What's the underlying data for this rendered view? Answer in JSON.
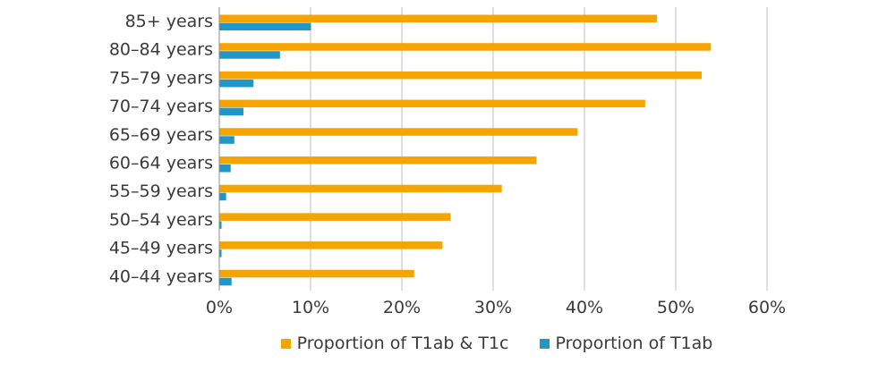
{
  "colors": {
    "orange": "#F5A400",
    "blue": "#2196C9",
    "grid": "#bfbfbf"
  },
  "chart_data": {
    "type": "bar",
    "orientation": "horizontal",
    "categories": [
      "85+ years",
      "80–84 years",
      "75–79 years",
      "70–74 years",
      "65–69 years",
      "60–64 years",
      "55–59 years",
      "50–54 years",
      "45–49 years",
      "40–44 years"
    ],
    "series": [
      {
        "name": "Proportion of T1ab & T1c",
        "color": "#F5A400",
        "values": [
          47.9,
          53.8,
          52.8,
          46.6,
          39.2,
          34.7,
          30.9,
          25.3,
          24.4,
          21.3
        ]
      },
      {
        "name": "Proportion of T1ab",
        "color": "#2196C9",
        "values": [
          10.0,
          6.6,
          3.7,
          2.6,
          1.6,
          1.2,
          0.7,
          0.2,
          0.2,
          1.3
        ]
      }
    ],
    "xlim": [
      0,
      60
    ],
    "xticks": [
      "0%",
      "10%",
      "20%",
      "30%",
      "40%",
      "50%",
      "60%"
    ],
    "grid": true,
    "legend_position": "bottom"
  }
}
